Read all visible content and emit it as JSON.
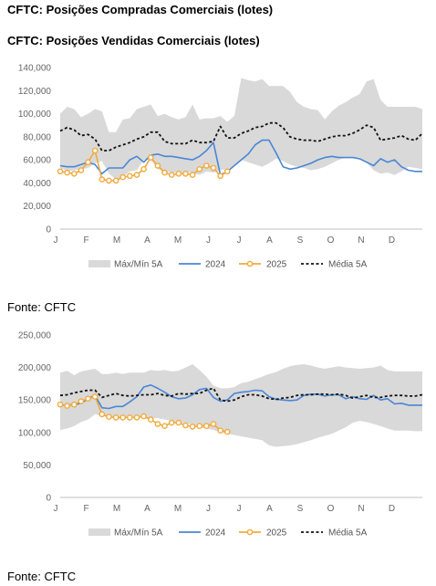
{
  "titles": {
    "main": "CFTC: Posições Compradas Comerciais (lotes)",
    "second": "CFTC: Posições Vendidas Comerciais (lotes)"
  },
  "sources": [
    "Fonte: CFTC",
    "Fonte: CFTC"
  ],
  "colors": {
    "band": "#d9d9d9",
    "y2024": "#4a86d6",
    "y2025": "#f2a93b",
    "avg": "#111111"
  },
  "chart_data": [
    {
      "type": "line",
      "title": "CFTC: Posições Compradas Comerciais (lotes)",
      "xlabel": "",
      "ylabel": "",
      "x_ticks": [
        "J",
        "F",
        "M",
        "A",
        "M",
        "J",
        "J",
        "A",
        "S",
        "O",
        "N",
        "D"
      ],
      "y_ticks": [
        "0",
        "20,000",
        "40,000",
        "60,000",
        "80,000",
        "100,000",
        "120,000",
        "140,000"
      ],
      "ylim": [
        0,
        140000
      ],
      "x_range": [
        1,
        53
      ],
      "x_unit": "week",
      "grid": false,
      "legend_position": "bottom",
      "legend": [
        "Máx/Mín 5A",
        "2024",
        "2025",
        "Média 5A"
      ],
      "series": [
        {
          "name": "Máx/Mín 5A",
          "kind": "band",
          "x": [
            1,
            2,
            3,
            4,
            5,
            6,
            7,
            8,
            9,
            10,
            11,
            12,
            13,
            14,
            15,
            16,
            17,
            18,
            19,
            20,
            21,
            22,
            23,
            24,
            25,
            26,
            27,
            28,
            29,
            30,
            31,
            32,
            33,
            34,
            35,
            36,
            37,
            38,
            39,
            40,
            41,
            42,
            43,
            44,
            45,
            46,
            47,
            48,
            49,
            50,
            51,
            52,
            53
          ],
          "upper": [
            100000,
            106000,
            104000,
            97000,
            100000,
            104000,
            102000,
            84000,
            84000,
            95000,
            96000,
            104000,
            106000,
            108000,
            98000,
            100000,
            97000,
            95000,
            97000,
            108000,
            95000,
            96000,
            96000,
            98000,
            93000,
            98000,
            131000,
            129000,
            128000,
            130000,
            124000,
            124000,
            124000,
            119000,
            110000,
            106000,
            104000,
            103000,
            95000,
            102000,
            107000,
            110000,
            114000,
            117000,
            128000,
            130000,
            112000,
            106000,
            106000,
            106000,
            106000,
            106000,
            104000
          ],
          "lower": [
            53000,
            50000,
            51000,
            52000,
            53000,
            57000,
            59000,
            48000,
            43000,
            45000,
            50000,
            51000,
            60000,
            60000,
            52000,
            50000,
            49000,
            49000,
            49000,
            49000,
            47000,
            50000,
            49000,
            51000,
            52000,
            55000,
            60000,
            58000,
            56000,
            54000,
            57000,
            61000,
            59000,
            56000,
            54000,
            53000,
            51000,
            52000,
            54000,
            57000,
            60000,
            62000,
            62000,
            62000,
            58000,
            51000,
            48000,
            49000,
            47000,
            50000,
            54000,
            53000,
            52000
          ]
        },
        {
          "name": "2024",
          "x": [
            1,
            2,
            3,
            4,
            5,
            6,
            7,
            8,
            9,
            10,
            11,
            12,
            13,
            14,
            15,
            16,
            17,
            18,
            19,
            20,
            21,
            22,
            23,
            24,
            25,
            26,
            27,
            28,
            29,
            30,
            31,
            32,
            33,
            34,
            35,
            36,
            37,
            38,
            39,
            40,
            41,
            42,
            43,
            44,
            45,
            46,
            47,
            48,
            49,
            50,
            51,
            52,
            53
          ],
          "y": [
            55000,
            54000,
            54000,
            56000,
            58000,
            56000,
            48000,
            53000,
            53000,
            53000,
            60000,
            63000,
            58000,
            64000,
            65000,
            63000,
            63000,
            62000,
            61000,
            60000,
            63000,
            68000,
            75000,
            47000,
            50000,
            55000,
            60000,
            65000,
            73000,
            77000,
            77000,
            66000,
            54000,
            52000,
            53000,
            55000,
            57000,
            60000,
            62000,
            63000,
            62000,
            62000,
            62000,
            61000,
            58000,
            55000,
            61000,
            58000,
            60000,
            54000,
            51000,
            50000,
            50000
          ]
        },
        {
          "name": "2025",
          "x": [
            1,
            2,
            3,
            4,
            5,
            6,
            7,
            8,
            9,
            10,
            11,
            12,
            13,
            14,
            15,
            16,
            17,
            18,
            19,
            20,
            21,
            22,
            23,
            24,
            25
          ],
          "y": [
            50000,
            49000,
            48000,
            51000,
            58000,
            68000,
            43000,
            42000,
            42000,
            45000,
            46000,
            47000,
            52000,
            62000,
            55000,
            49000,
            47000,
            48000,
            48000,
            47000,
            52000,
            55000,
            53000,
            46000,
            50000
          ]
        },
        {
          "name": "Média 5A",
          "x": [
            1,
            2,
            3,
            4,
            5,
            6,
            7,
            8,
            9,
            10,
            11,
            12,
            13,
            14,
            15,
            16,
            17,
            18,
            19,
            20,
            21,
            22,
            23,
            24,
            25,
            26,
            27,
            28,
            29,
            30,
            31,
            32,
            33,
            34,
            35,
            36,
            37,
            38,
            39,
            40,
            41,
            42,
            43,
            44,
            45,
            46,
            47,
            48,
            49,
            50,
            51,
            52,
            53
          ],
          "y": [
            85000,
            88000,
            86000,
            81000,
            82000,
            78000,
            68000,
            68000,
            71000,
            73000,
            75000,
            78000,
            80000,
            84000,
            84000,
            76000,
            74000,
            74000,
            74000,
            77000,
            75000,
            75000,
            76000,
            89000,
            79000,
            79000,
            83000,
            85000,
            88000,
            89000,
            92000,
            92000,
            88000,
            80000,
            78000,
            77000,
            77000,
            76000,
            78000,
            80000,
            81000,
            81000,
            83000,
            86000,
            90000,
            88000,
            77000,
            78000,
            79000,
            81000,
            78000,
            77000,
            83000
          ]
        }
      ]
    },
    {
      "type": "line",
      "title": "CFTC: Posições Vendidas Comerciais (lotes)",
      "xlabel": "",
      "ylabel": "",
      "x_ticks": [
        "J",
        "F",
        "M",
        "A",
        "M",
        "J",
        "J",
        "A",
        "S",
        "O",
        "N",
        "D"
      ],
      "y_ticks": [
        "0",
        "50,000",
        "100,000",
        "150,000",
        "200,000",
        "250,000"
      ],
      "ylim": [
        0,
        250000
      ],
      "x_range": [
        1,
        53
      ],
      "x_unit": "week",
      "grid": false,
      "legend_position": "bottom",
      "legend": [
        "Máx/Mín 5A",
        "2024",
        "2025",
        "Média 5A"
      ],
      "series": [
        {
          "name": "Máx/Mín 5A",
          "kind": "band",
          "x": [
            1,
            2,
            3,
            4,
            5,
            6,
            7,
            8,
            9,
            10,
            11,
            12,
            13,
            14,
            15,
            16,
            17,
            18,
            19,
            20,
            21,
            22,
            23,
            24,
            25,
            26,
            27,
            28,
            29,
            30,
            31,
            32,
            33,
            34,
            35,
            36,
            37,
            38,
            39,
            40,
            41,
            42,
            43,
            44,
            45,
            46,
            47,
            48,
            49,
            50,
            51,
            52,
            53
          ],
          "upper": [
            192000,
            195000,
            188000,
            194000,
            196000,
            198000,
            190000,
            190000,
            192000,
            190000,
            192000,
            192000,
            192000,
            196000,
            195000,
            196000,
            194000,
            195000,
            200000,
            205000,
            196000,
            186000,
            172000,
            168000,
            168000,
            170000,
            176000,
            178000,
            182000,
            186000,
            190000,
            193000,
            198000,
            202000,
            204000,
            205000,
            203000,
            200000,
            198000,
            200000,
            202000,
            200000,
            199000,
            198000,
            199000,
            200000,
            203000,
            196000,
            194000,
            194000,
            194000,
            194000,
            194000
          ],
          "lower": [
            104000,
            106000,
            110000,
            116000,
            120000,
            128000,
            126000,
            124000,
            122000,
            120000,
            125000,
            124000,
            122000,
            122000,
            122000,
            120000,
            118000,
            116000,
            114000,
            112000,
            108000,
            106000,
            104000,
            100000,
            98000,
            96000,
            94000,
            92000,
            90000,
            88000,
            80000,
            78000,
            79000,
            80000,
            82000,
            85000,
            88000,
            92000,
            95000,
            98000,
            103000,
            108000,
            115000,
            118000,
            116000,
            113000,
            110000,
            106000,
            103000,
            103000,
            103000,
            102000,
            102000
          ]
        },
        {
          "name": "2024",
          "x": [
            1,
            2,
            3,
            4,
            5,
            6,
            7,
            8,
            9,
            10,
            11,
            12,
            13,
            14,
            15,
            16,
            17,
            18,
            19,
            20,
            21,
            22,
            23,
            24,
            25,
            26,
            27,
            28,
            29,
            30,
            31,
            32,
            33,
            34,
            35,
            36,
            37,
            38,
            39,
            40,
            41,
            42,
            43,
            44,
            45,
            46,
            47,
            48,
            49,
            50,
            51,
            52,
            53
          ],
          "y": [
            142000,
            142000,
            143000,
            145000,
            152000,
            157000,
            138000,
            137000,
            140000,
            140000,
            147000,
            155000,
            170000,
            173000,
            168000,
            162000,
            155000,
            152000,
            153000,
            158000,
            166000,
            168000,
            154000,
            148000,
            150000,
            160000,
            162000,
            163000,
            165000,
            164000,
            155000,
            151000,
            150000,
            149000,
            150000,
            157000,
            159000,
            159000,
            156000,
            158000,
            158000,
            152000,
            155000,
            152000,
            151000,
            157000,
            150000,
            152000,
            144000,
            145000,
            142000,
            142000,
            142000
          ]
        },
        {
          "name": "2025",
          "x": [
            1,
            2,
            3,
            4,
            5,
            6,
            7,
            8,
            9,
            10,
            11,
            12,
            13,
            14,
            15,
            16,
            17,
            18,
            19,
            20,
            21,
            22,
            23,
            24,
            25
          ],
          "y": [
            143000,
            141000,
            143000,
            148000,
            152000,
            155000,
            128000,
            124000,
            123000,
            123000,
            123000,
            123000,
            125000,
            120000,
            113000,
            110000,
            115000,
            115000,
            111000,
            109000,
            110000,
            110000,
            113000,
            103000,
            101000
          ]
        },
        {
          "name": "Média 5A",
          "x": [
            1,
            2,
            3,
            4,
            5,
            6,
            7,
            8,
            9,
            10,
            11,
            12,
            13,
            14,
            15,
            16,
            17,
            18,
            19,
            20,
            21,
            22,
            23,
            24,
            25,
            26,
            27,
            28,
            29,
            30,
            31,
            32,
            33,
            34,
            35,
            36,
            37,
            38,
            39,
            40,
            41,
            42,
            43,
            44,
            45,
            46,
            47,
            48,
            49,
            50,
            51,
            52,
            53
          ],
          "y": [
            157000,
            158000,
            161000,
            163000,
            165000,
            165000,
            154000,
            157000,
            160000,
            157000,
            156000,
            157000,
            158000,
            158000,
            160000,
            157000,
            156000,
            160000,
            159000,
            160000,
            160000,
            165000,
            168000,
            150000,
            148000,
            150000,
            155000,
            158000,
            158000,
            156000,
            152000,
            151000,
            153000,
            154000,
            157000,
            158000,
            158000,
            159000,
            159000,
            158000,
            159000,
            157000,
            153000,
            155000,
            157000,
            154000,
            154000,
            156000,
            157000,
            157000,
            156000,
            156000,
            158000
          ]
        }
      ]
    }
  ]
}
